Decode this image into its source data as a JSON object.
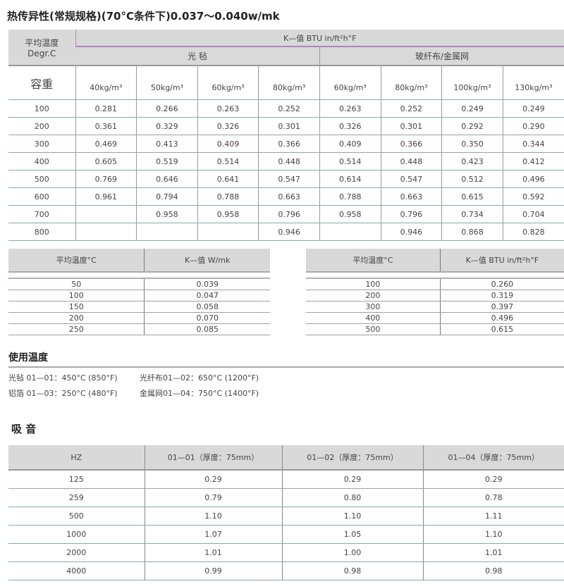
{
  "title": "热传异性(常规规格)(70°C条件下)0.037～0.040w/mk",
  "main_table": {
    "corner_label": "平均温度",
    "corner_unit": "Degr.C",
    "density_label": "容重",
    "kvalue_header": "K—值  BTU  in/ft²h°F",
    "groups": [
      "光  毡",
      "玻纤布/金属网"
    ],
    "columns": [
      "40kg/m³",
      "50kg/m³",
      "60kg/m³",
      "80kg/m³",
      "60kg/m³",
      "80kg/m³",
      "100kg/m³",
      "130kg/m³"
    ],
    "rows": [
      {
        "temp": "100",
        "values": [
          "0.281",
          "0.266",
          "0.263",
          "0.252",
          "0.263",
          "0.252",
          "0.249",
          "0.249"
        ]
      },
      {
        "temp": "200",
        "values": [
          "0.361",
          "0.329",
          "0.326",
          "0.301",
          "0.326",
          "0.301",
          "0.292",
          "0.290"
        ]
      },
      {
        "temp": "300",
        "values": [
          "0.469",
          "0.413",
          "0.409",
          "0.366",
          "0.409",
          "0.366",
          "0.350",
          "0.344"
        ]
      },
      {
        "temp": "400",
        "values": [
          "0.605",
          "0.519",
          "0.514",
          "0.448",
          "0.514",
          "0.448",
          "0.423",
          "0.412"
        ]
      },
      {
        "temp": "500",
        "values": [
          "0.769",
          "0.646",
          "0.641",
          "0.547",
          "0.614",
          "0.547",
          "0.512",
          "0.496"
        ]
      },
      {
        "temp": "600",
        "values": [
          "0.961",
          "0.794",
          "0.788",
          "0.663",
          "0.788",
          "0.663",
          "0.615",
          "0.592"
        ]
      },
      {
        "temp": "700",
        "values": [
          "",
          "0.958",
          "0.958",
          "0.796",
          "0.958",
          "0.796",
          "0.734",
          "0.704"
        ]
      },
      {
        "temp": "800",
        "values": [
          "",
          "",
          "",
          "0.946",
          "",
          "0.946",
          "0.868",
          "0.828"
        ]
      }
    ]
  },
  "table_w": {
    "headers": [
      "平均温度°C",
      "K—值  W/mk"
    ],
    "rows": [
      [
        "50",
        "0.039"
      ],
      [
        "100",
        "0.047"
      ],
      [
        "150",
        "0.058"
      ],
      [
        "200",
        "0.070"
      ],
      [
        "250",
        "0.085"
      ]
    ]
  },
  "table_btu": {
    "headers": [
      "平均温度°C",
      "K—值  BTU  in/ft²h°F"
    ],
    "rows": [
      [
        "100",
        "0.260"
      ],
      [
        "200",
        "0.319"
      ],
      [
        "300",
        "0.397"
      ],
      [
        "400",
        "0.496"
      ],
      [
        "500",
        "0.615"
      ]
    ]
  },
  "usage": {
    "heading": "使用温度",
    "items": [
      "光毡 01—01：450°C (850°F)",
      "光纤布01—02：650°C (1200°F)",
      "铝箔 01—03：250°C (480°F)",
      "金属网01—04：750°C (1400°F)"
    ]
  },
  "sound": {
    "heading": "吸  音",
    "headers": [
      "HZ",
      "01—01（厚度：75mm）",
      "01—02（厚度：75mm）",
      "01—04（厚度：75mm）"
    ],
    "rows": [
      [
        "125",
        "0.29",
        "0.29",
        "0.29"
      ],
      [
        "259",
        "0.79",
        "0.80",
        "0.78"
      ],
      [
        "500",
        "1.10",
        "1.10",
        "1.11"
      ],
      [
        "1000",
        "1.07",
        "1.05",
        "1.10"
      ],
      [
        "2000",
        "1.01",
        "1.00",
        "1.01"
      ],
      [
        "4000",
        "0.99",
        "0.98",
        "0.98"
      ]
    ]
  }
}
